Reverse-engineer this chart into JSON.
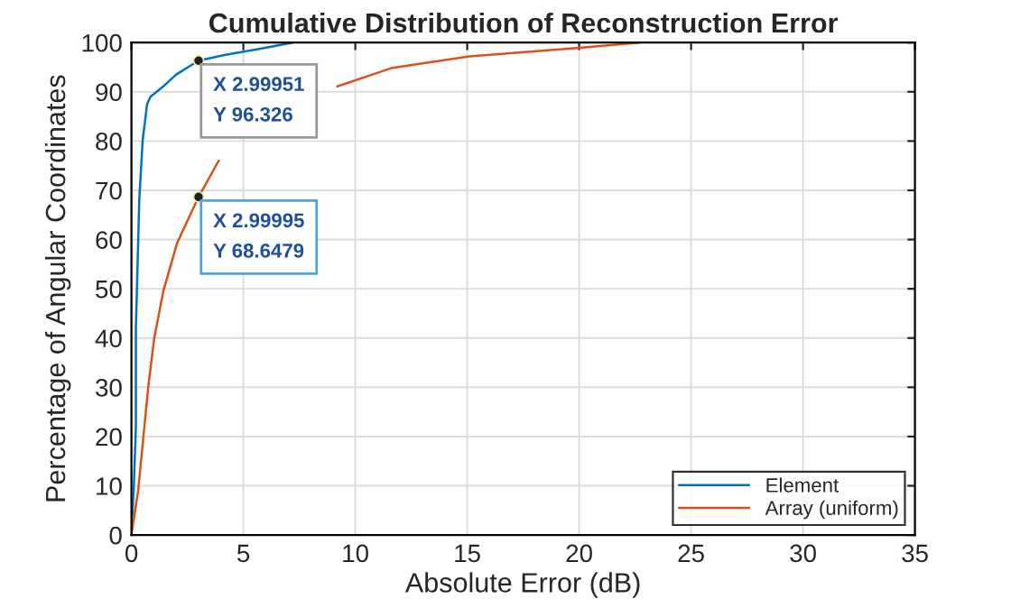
{
  "chart_data": {
    "type": "line",
    "title": "Cumulative Distribution of Reconstruction Error",
    "xlabel": "Absolute Error (dB)",
    "ylabel": "Percentage of Angular Coordinates",
    "series": [
      {
        "name": "Element",
        "color": "#0072bd",
        "x": [
          0,
          0.05,
          0.1,
          0.2,
          0.2,
          0.35,
          0.5,
          0.7,
          0.85,
          1.4,
          2.0,
          2.99951,
          4.2,
          5.6,
          7.2
        ],
        "values": [
          0,
          5,
          9,
          22,
          42,
          68,
          80,
          87.5,
          89,
          91,
          93.5,
          96.326,
          97.5,
          98.6,
          100
        ]
      },
      {
        "name": "Array (uniform)",
        "color": "#d95319",
        "x": [
          0,
          0.3,
          0.75,
          1.02,
          1.43,
          2.04,
          2.99995,
          3.9,
          6.0,
          9.2,
          11.6,
          15.1,
          19.9,
          22.7
        ],
        "values": [
          0,
          9,
          30,
          40,
          49.6,
          59.3,
          68.6479,
          76,
          null,
          91.1,
          94.8,
          97.2,
          98.9,
          100
        ]
      }
    ],
    "annotations": [
      {
        "text": "X 2.99951\nY 96.326",
        "x": 2.99951,
        "y": 96.326
      },
      {
        "text": "X 2.99995\nY 68.6479",
        "x": 2.99995,
        "y": 68.6479
      }
    ],
    "xlim": [
      0,
      35
    ],
    "ylim": [
      0,
      100
    ],
    "xticks": [
      0,
      5,
      10,
      15,
      20,
      25,
      30,
      35
    ],
    "yticks": [
      0,
      10,
      20,
      30,
      40,
      50,
      60,
      70,
      80,
      90,
      100
    ],
    "grid": true,
    "legend": "bottom right",
    "line_style": "solid"
  }
}
